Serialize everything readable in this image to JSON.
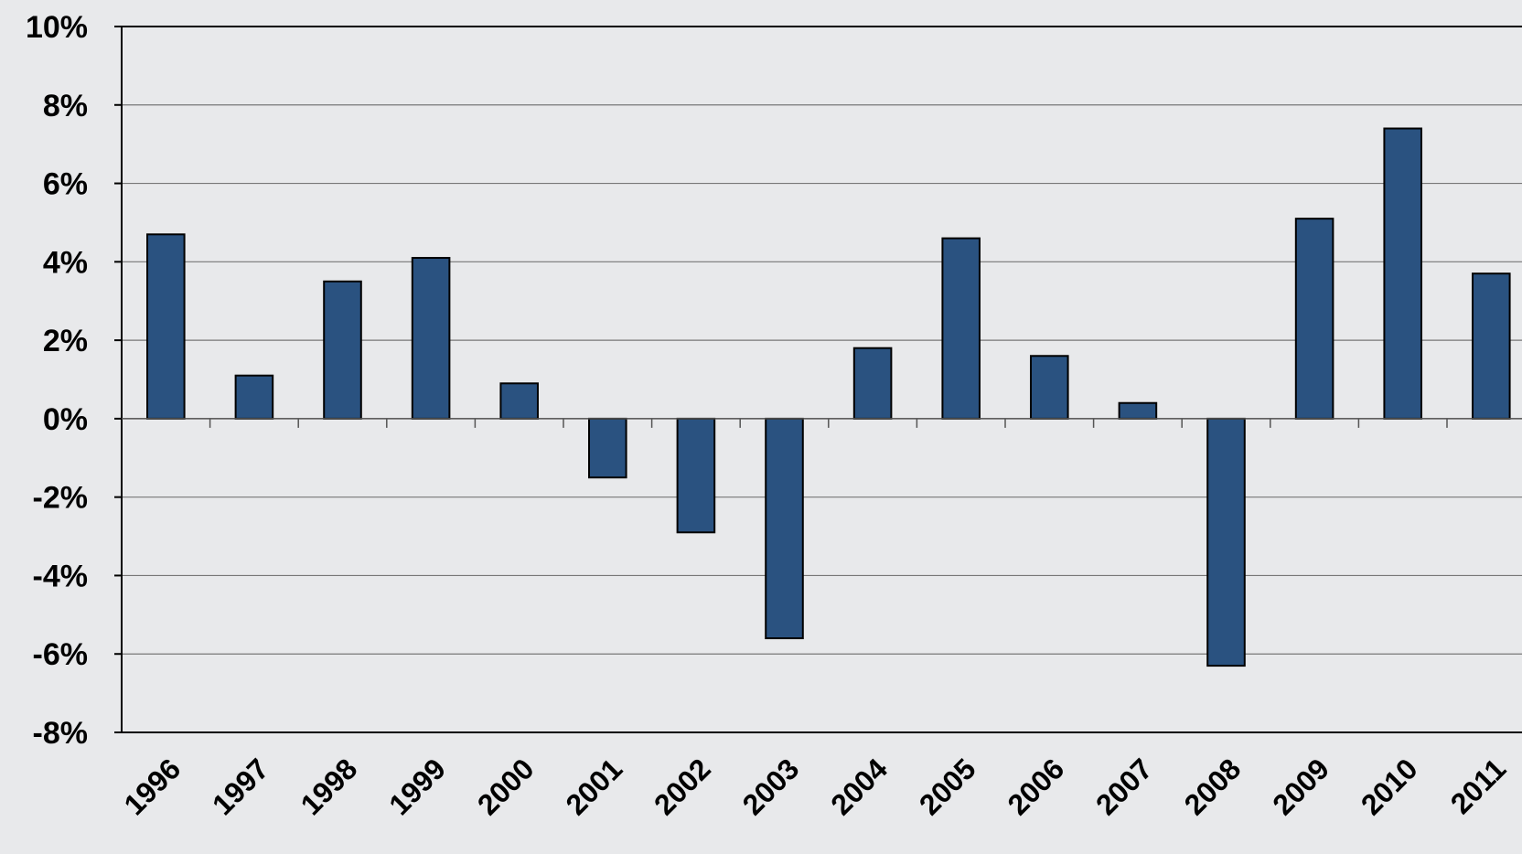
{
  "chart_data": {
    "type": "bar",
    "categories": [
      "1996",
      "1997",
      "1998",
      "1999",
      "2000",
      "2001",
      "2002",
      "2003",
      "2004",
      "2005",
      "2006",
      "2007",
      "2008",
      "2009",
      "2010",
      "2011"
    ],
    "values": [
      4.7,
      1.1,
      3.5,
      4.1,
      0.9,
      -1.5,
      -2.9,
      -5.6,
      1.8,
      4.6,
      1.6,
      0.4,
      -6.3,
      5.1,
      7.4,
      3.7
    ],
    "color": "#2a5280",
    "ylim": [
      -8,
      10
    ],
    "yticks": [
      {
        "value": -8,
        "label": "-8%"
      },
      {
        "value": -6,
        "label": "-6%"
      },
      {
        "value": -4,
        "label": "-4%"
      },
      {
        "value": -2,
        "label": "-2%"
      },
      {
        "value": 0,
        "label": "0%"
      },
      {
        "value": 2,
        "label": "2%"
      },
      {
        "value": 4,
        "label": "4%"
      },
      {
        "value": 6,
        "label": "6%"
      },
      {
        "value": 8,
        "label": "8%"
      },
      {
        "value": 10,
        "label": "10%"
      }
    ],
    "grid": true
  }
}
